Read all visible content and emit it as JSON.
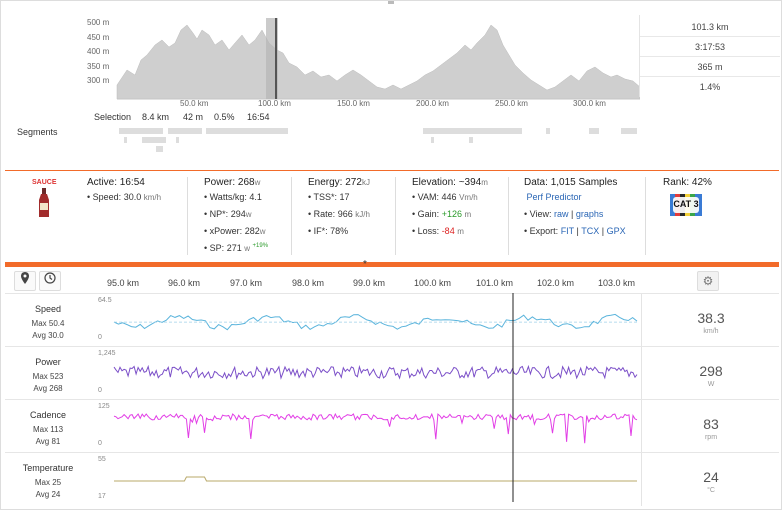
{
  "elevation": {
    "y_ticks": [
      "500 m",
      "450 m",
      "400 m",
      "350 m",
      "300 m"
    ],
    "x_ticks": [
      "50.0 km",
      "100.0 km",
      "150.0 km",
      "200.0 km",
      "250.0 km",
      "300.0 km"
    ],
    "stats": [
      "101.3 km",
      "3:17:53",
      "365 m",
      "1.4%"
    ],
    "fill_color": "#cfcfcf"
  },
  "selection": {
    "label": "Selection",
    "distance": "8.4 km",
    "gain": "42 m",
    "grade": "0.5%",
    "time": "16:54"
  },
  "segments": {
    "label": "Segments"
  },
  "info": {
    "logo_text": "SAUCE",
    "active": {
      "title": "Active:",
      "value": "16:54",
      "speed_label": "• Speed:",
      "speed_value": "30.0",
      "speed_unit": "km/h"
    },
    "power": {
      "title": "Power:",
      "value": "268",
      "unit": "w",
      "wkg_label": "• Watts/kg:",
      "wkg_value": "4.1",
      "np_label": "• NP*:",
      "np_value": "294",
      "np_unit": "w",
      "xp_label": "• xPower:",
      "xp_value": "282",
      "xp_unit": "w",
      "sp_label": "• SP:",
      "sp_value": "271",
      "sp_unit": "w",
      "sp_pct": "+19%"
    },
    "energy": {
      "title": "Energy:",
      "value": "272",
      "unit": "kJ",
      "tss_label": "• TSS*:",
      "tss_value": "17",
      "rate_label": "• Rate:",
      "rate_value": "966",
      "rate_unit": "kJ/h",
      "if_label": "• IF*:",
      "if_value": "78%"
    },
    "elevation": {
      "title": "Elevation:",
      "value": "~394",
      "unit": "m",
      "vam_label": "• VAM:",
      "vam_value": "446",
      "vam_unit": "Vm/h",
      "gain_label": "• Gain:",
      "gain_value": "+126",
      "gain_unit": "m",
      "loss_label": "• Loss:",
      "loss_value": "-84",
      "loss_unit": "m"
    },
    "data": {
      "title": "Data:",
      "value": "1,015 Samples",
      "perf": "Perf Predictor",
      "view_label": "• View:",
      "view_raw": "raw",
      "sep": "|",
      "view_graphs": "graphs",
      "export_label": "• Export:",
      "fit": "FIT",
      "tcx": "TCX",
      "gpx": "GPX"
    },
    "rank": {
      "title": "Rank:",
      "value": "42%",
      "badge": "CAT 3"
    },
    "handle": "*"
  },
  "chart_header": {
    "pin_icon": "pin-icon",
    "clock_icon": "clock-icon",
    "gear_icon": "gear-icon",
    "km_ticks": [
      "95.0 km",
      "96.0 km",
      "97.0 km",
      "98.0 km",
      "99.0 km",
      "100.0 km",
      "101.0 km",
      "102.0 km",
      "103.0 km"
    ]
  },
  "streams": [
    {
      "name": "Speed",
      "max": "Max 50.4",
      "avg": "Avg 30.0",
      "axis_max": "64.5",
      "axis_min": "0",
      "value": "38.3",
      "unit": "km/h",
      "color": "#5ab4dc"
    },
    {
      "name": "Power",
      "max": "Max 523",
      "avg": "Avg 268",
      "axis_max": "1,245",
      "axis_min": "0",
      "value": "298",
      "unit": "W",
      "color": "#7b4fc8"
    },
    {
      "name": "Cadence",
      "max": "Max 113",
      "avg": "Avg 81",
      "axis_max": "125",
      "axis_min": "0",
      "value": "83",
      "unit": "rpm",
      "color": "#e23ee6"
    },
    {
      "name": "Temperature",
      "max": "Max 25",
      "avg": "Avg 24",
      "axis_max": "55",
      "axis_min": "17",
      "value": "24",
      "unit": "°C",
      "color": "#b8a86a"
    }
  ]
}
